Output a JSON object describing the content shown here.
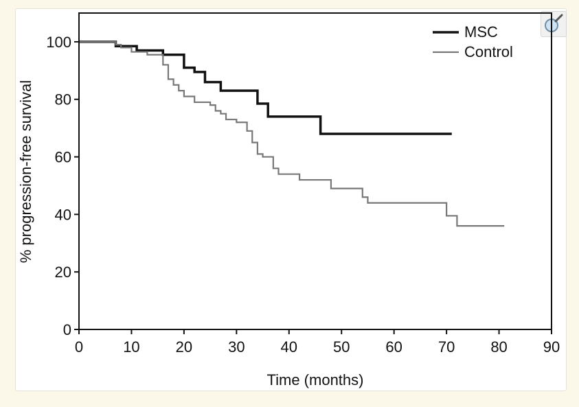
{
  "icons": {
    "zoom": "magnifier-icon"
  },
  "colors": {
    "background": "#fbf8e9",
    "msc": "#111111",
    "control": "#777777"
  },
  "chart_data": {
    "type": "line",
    "step": true,
    "title": "",
    "xlabel": "Time (months)",
    "ylabel": "% progression-free survival",
    "xlim": [
      0,
      90
    ],
    "ylim": [
      0,
      110
    ],
    "xticks": [
      0,
      10,
      20,
      30,
      40,
      50,
      60,
      70,
      80,
      90
    ],
    "yticks": [
      0,
      20,
      40,
      60,
      80,
      100
    ],
    "grid": false,
    "legend": "top-right",
    "series": [
      {
        "name": "MSC",
        "color": "#111111",
        "x": [
          0,
          7,
          11,
          16,
          20,
          22,
          24,
          27,
          34,
          36,
          46,
          71
        ],
        "y": [
          100,
          98.5,
          97,
          95.5,
          91,
          89.5,
          86,
          83,
          78.5,
          74,
          68,
          68
        ]
      },
      {
        "name": "Control",
        "color": "#777777",
        "x": [
          0,
          7,
          8,
          10,
          13,
          16,
          17,
          18,
          19,
          20,
          22,
          25,
          26,
          27,
          28,
          30,
          32,
          33,
          34,
          35,
          37,
          38,
          42,
          48,
          54,
          55,
          70,
          72,
          81
        ],
        "y": [
          100,
          99,
          98,
          96.5,
          95.5,
          92,
          87,
          85,
          83,
          81,
          79,
          78,
          76,
          75,
          73,
          72,
          69,
          65,
          61,
          60,
          56,
          54,
          52,
          49,
          46,
          44,
          39.5,
          36,
          36
        ]
      }
    ]
  }
}
